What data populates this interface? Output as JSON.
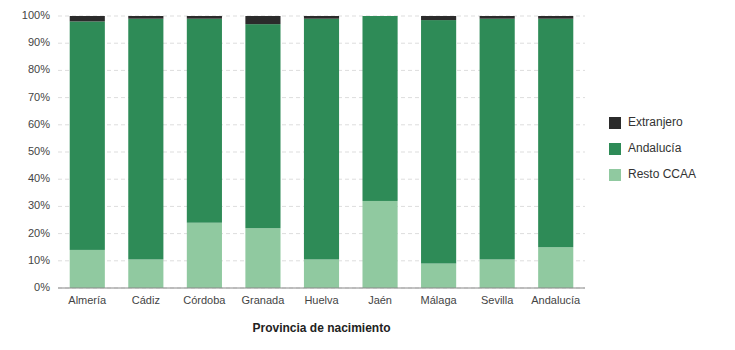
{
  "chart_data": {
    "type": "bar",
    "stacked": true,
    "x_label": "Provincia de nacimiento",
    "categories": [
      "Almería",
      "Cádiz",
      "Córdoba",
      "Granada",
      "Huelva",
      "Jaén",
      "Málaga",
      "Sevilla",
      "Andalucía"
    ],
    "series": [
      {
        "name": "Resto CCAA",
        "color": "#90c9a0",
        "values": [
          14.0,
          10.5,
          24.0,
          22.0,
          10.5,
          32.0,
          9.0,
          10.5,
          15.0
        ]
      },
      {
        "name": "Andalucía",
        "color": "#2e8b57",
        "values": [
          84.0,
          88.5,
          75.0,
          75.0,
          88.5,
          68.0,
          89.5,
          88.5,
          84.0
        ]
      },
      {
        "name": "Extranjero",
        "color": "#2b2b2b",
        "values": [
          2.0,
          1.0,
          1.0,
          3.0,
          1.0,
          0.0,
          1.5,
          1.0,
          1.0
        ]
      }
    ],
    "ylim": [
      0,
      100
    ],
    "yticks": [
      {
        "value": 0,
        "label": "0%"
      },
      {
        "value": 10,
        "label": "10%"
      },
      {
        "value": 20,
        "label": "20%"
      },
      {
        "value": 30,
        "label": "30%"
      },
      {
        "value": 40,
        "label": "40%"
      },
      {
        "value": 50,
        "label": "50%"
      },
      {
        "value": 60,
        "label": "60%"
      },
      {
        "value": 70,
        "label": "70%"
      },
      {
        "value": 80,
        "label": "80%"
      },
      {
        "value": 90,
        "label": "90%"
      },
      {
        "value": 100,
        "label": "100%"
      }
    ],
    "grid": true,
    "legend": "right"
  }
}
